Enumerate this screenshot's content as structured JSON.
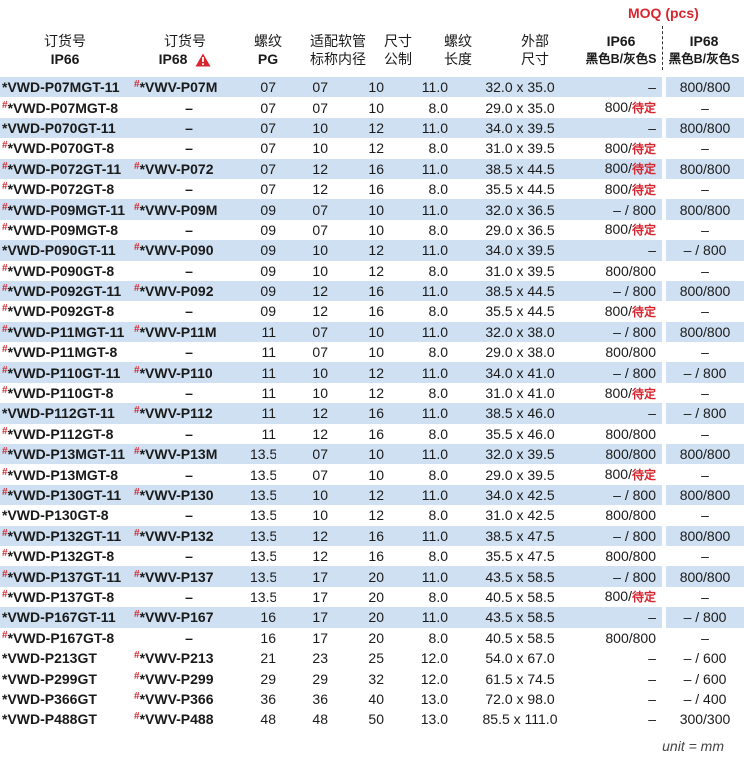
{
  "header": {
    "moq_title": "MOQ (pcs)",
    "col1_top": "订货号",
    "col1_bottom": "IP66",
    "col2_top": "订货号",
    "col2_bottom": "IP68",
    "col3_top": "螺纹",
    "col3_bottom": "PG",
    "col4_top": "适配软管",
    "col4_bottom": "标称内径",
    "col5_top": "尺寸",
    "col5_bottom": "公制",
    "col6_top": "螺纹",
    "col6_bottom": "长度",
    "col7_top": "外部",
    "col7_bottom": "尺寸",
    "col8_top": "IP66",
    "col8_bottom": "黑色B/灰色S",
    "col9_top": "IP68",
    "col9_bottom": "黑色B/灰色S"
  },
  "warning_icon": "warning-triangle-icon",
  "tbd_label": "待定",
  "rows": [
    {
      "ip66": "*VWD-P07MGT-11",
      "ip66_mark": "",
      "ip68": "*VWV-P07M",
      "ip68_mark": "#",
      "pg": "07",
      "hose": "07",
      "metric": "10",
      "len": "11.0",
      "ext": "32.0 x 35.0",
      "moq66_a": "–",
      "moq66_b": "",
      "moq68": "800/800"
    },
    {
      "ip66": "*VWD-P07MGT-8",
      "ip66_mark": "#",
      "ip68": "–",
      "ip68_mark": "",
      "pg": "07",
      "hose": "07",
      "metric": "10",
      "len": "8.0",
      "ext": "29.0 x 35.0",
      "moq66_a": "800/",
      "moq66_b": "待定",
      "moq68": "–"
    },
    {
      "ip66": "*VWD-P070GT-11",
      "ip66_mark": "",
      "ip68": "–",
      "ip68_mark": "",
      "pg": "07",
      "hose": "10",
      "metric": "12",
      "len": "11.0",
      "ext": "34.0 x 39.5",
      "moq66_a": "–",
      "moq66_b": "",
      "moq68": "800/800"
    },
    {
      "ip66": "*VWD-P070GT-8",
      "ip66_mark": "#",
      "ip68": "–",
      "ip68_mark": "",
      "pg": "07",
      "hose": "10",
      "metric": "12",
      "len": "8.0",
      "ext": "31.0 x 39.5",
      "moq66_a": "800/",
      "moq66_b": "待定",
      "moq68": "–"
    },
    {
      "ip66": "*VWD-P072GT-11",
      "ip66_mark": "#",
      "ip68": "*VWV-P072",
      "ip68_mark": "#",
      "pg": "07",
      "hose": "12",
      "metric": "16",
      "len": "11.0",
      "ext": "38.5 x 44.5",
      "moq66_a": "800/",
      "moq66_b": "待定",
      "moq68": "800/800"
    },
    {
      "ip66": "*VWD-P072GT-8",
      "ip66_mark": "#",
      "ip68": "–",
      "ip68_mark": "",
      "pg": "07",
      "hose": "12",
      "metric": "16",
      "len": "8.0",
      "ext": "35.5 x 44.5",
      "moq66_a": "800/",
      "moq66_b": "待定",
      "moq68": "–"
    },
    {
      "ip66": "*VWD-P09MGT-11",
      "ip66_mark": "#",
      "ip68": "*VWV-P09M",
      "ip68_mark": "#",
      "pg": "09",
      "hose": "07",
      "metric": "10",
      "len": "11.0",
      "ext": "32.0 x 36.5",
      "moq66_a": "– / 800",
      "moq66_b": "",
      "moq68": "800/800"
    },
    {
      "ip66": "*VWD-P09MGT-8",
      "ip66_mark": "#",
      "ip68": "–",
      "ip68_mark": "",
      "pg": "09",
      "hose": "07",
      "metric": "10",
      "len": "8.0",
      "ext": "29.0 x 36.5",
      "moq66_a": "800/",
      "moq66_b": "待定",
      "moq68": "–"
    },
    {
      "ip66": "*VWD-P090GT-11",
      "ip66_mark": "",
      "ip68": "*VWV-P090",
      "ip68_mark": "#",
      "pg": "09",
      "hose": "10",
      "metric": "12",
      "len": "11.0",
      "ext": "34.0 x 39.5",
      "moq66_a": "–",
      "moq66_b": "",
      "moq68": "– / 800"
    },
    {
      "ip66": "*VWD-P090GT-8",
      "ip66_mark": "#",
      "ip68": "–",
      "ip68_mark": "",
      "pg": "09",
      "hose": "10",
      "metric": "12",
      "len": "8.0",
      "ext": "31.0 x 39.5",
      "moq66_a": "800/800",
      "moq66_b": "",
      "moq68": "–"
    },
    {
      "ip66": "*VWD-P092GT-11",
      "ip66_mark": "#",
      "ip68": "*VWV-P092",
      "ip68_mark": "#",
      "pg": "09",
      "hose": "12",
      "metric": "16",
      "len": "11.0",
      "ext": "38.5 x 44.5",
      "moq66_a": "– / 800",
      "moq66_b": "",
      "moq68": "800/800"
    },
    {
      "ip66": "*VWD-P092GT-8",
      "ip66_mark": "#",
      "ip68": "–",
      "ip68_mark": "",
      "pg": "09",
      "hose": "12",
      "metric": "16",
      "len": "8.0",
      "ext": "35.5 x 44.5",
      "moq66_a": "800/",
      "moq66_b": "待定",
      "moq68": "–"
    },
    {
      "ip66": "*VWD-P11MGT-11",
      "ip66_mark": "#",
      "ip68": "*VWV-P11M",
      "ip68_mark": "#",
      "pg": "11",
      "hose": "07",
      "metric": "10",
      "len": "11.0",
      "ext": "32.0 x 38.0",
      "moq66_a": "– / 800",
      "moq66_b": "",
      "moq68": "800/800"
    },
    {
      "ip66": "*VWD-P11MGT-8",
      "ip66_mark": "#",
      "ip68": "–",
      "ip68_mark": "",
      "pg": "11",
      "hose": "07",
      "metric": "10",
      "len": "8.0",
      "ext": "29.0 x 38.0",
      "moq66_a": "800/800",
      "moq66_b": "",
      "moq68": "–"
    },
    {
      "ip66": "*VWD-P110GT-11",
      "ip66_mark": "#",
      "ip68": "*VWV-P110",
      "ip68_mark": "#",
      "pg": "11",
      "hose": "10",
      "metric": "12",
      "len": "11.0",
      "ext": "34.0 x 41.0",
      "moq66_a": "– / 800",
      "moq66_b": "",
      "moq68": "– / 800"
    },
    {
      "ip66": "*VWD-P110GT-8",
      "ip66_mark": "#",
      "ip68": "–",
      "ip68_mark": "",
      "pg": "11",
      "hose": "10",
      "metric": "12",
      "len": "8.0",
      "ext": "31.0 x 41.0",
      "moq66_a": "800/",
      "moq66_b": "待定",
      "moq68": "–"
    },
    {
      "ip66": "*VWD-P112GT-11",
      "ip66_mark": "",
      "ip68": "*VWV-P112",
      "ip68_mark": "#",
      "pg": "11",
      "hose": "12",
      "metric": "16",
      "len": "11.0",
      "ext": "38.5 x 46.0",
      "moq66_a": "–",
      "moq66_b": "",
      "moq68": "– / 800"
    },
    {
      "ip66": "*VWD-P112GT-8",
      "ip66_mark": "#",
      "ip68": "–",
      "ip68_mark": "",
      "pg": "11",
      "hose": "12",
      "metric": "16",
      "len": "8.0",
      "ext": "35.5 x 46.0",
      "moq66_a": "800/800",
      "moq66_b": "",
      "moq68": "–"
    },
    {
      "ip66": "*VWD-P13MGT-11",
      "ip66_mark": "#",
      "ip68": "*VWV-P13M",
      "ip68_mark": "#",
      "pg": "13.5",
      "hose": "07",
      "metric": "10",
      "len": "11.0",
      "ext": "32.0 x 39.5",
      "moq66_a": "800/800",
      "moq66_b": "",
      "moq68": "800/800"
    },
    {
      "ip66": "*VWD-P13MGT-8",
      "ip66_mark": "#",
      "ip68": "–",
      "ip68_mark": "",
      "pg": "13.5",
      "hose": "07",
      "metric": "10",
      "len": "8.0",
      "ext": "29.0 x 39.5",
      "moq66_a": "800/",
      "moq66_b": "待定",
      "moq68": "–"
    },
    {
      "ip66": "*VWD-P130GT-11",
      "ip66_mark": "#",
      "ip68": "*VWV-P130",
      "ip68_mark": "#",
      "pg": "13.5",
      "hose": "10",
      "metric": "12",
      "len": "11.0",
      "ext": "34.0 x 42.5",
      "moq66_a": "– / 800",
      "moq66_b": "",
      "moq68": "800/800"
    },
    {
      "ip66": "*VWD-P130GT-8",
      "ip66_mark": "",
      "ip68": "–",
      "ip68_mark": "",
      "pg": "13.5",
      "hose": "10",
      "metric": "12",
      "len": "8.0",
      "ext": "31.0 x 42.5",
      "moq66_a": "800/800",
      "moq66_b": "",
      "moq68": "–"
    },
    {
      "ip66": "*VWD-P132GT-11",
      "ip66_mark": "#",
      "ip68": "*VWV-P132",
      "ip68_mark": "#",
      "pg": "13.5",
      "hose": "12",
      "metric": "16",
      "len": "11.0",
      "ext": "38.5 x 47.5",
      "moq66_a": "– / 800",
      "moq66_b": "",
      "moq68": "800/800"
    },
    {
      "ip66": "*VWD-P132GT-8",
      "ip66_mark": "#",
      "ip68": "–",
      "ip68_mark": "",
      "pg": "13.5",
      "hose": "12",
      "metric": "16",
      "len": "8.0",
      "ext": "35.5 x 47.5",
      "moq66_a": "800/800",
      "moq66_b": "",
      "moq68": "–"
    },
    {
      "ip66": "*VWD-P137GT-11",
      "ip66_mark": "#",
      "ip68": "*VWV-P137",
      "ip68_mark": "#",
      "pg": "13.5",
      "hose": "17",
      "metric": "20",
      "len": "11.0",
      "ext": "43.5 x 58.5",
      "moq66_a": "– / 800",
      "moq66_b": "",
      "moq68": "800/800"
    },
    {
      "ip66": "*VWD-P137GT-8",
      "ip66_mark": "#",
      "ip68": "–",
      "ip68_mark": "",
      "pg": "13.5",
      "hose": "17",
      "metric": "20",
      "len": "8.0",
      "ext": "40.5 x 58.5",
      "moq66_a": "800/",
      "moq66_b": "待定",
      "moq68": "–"
    },
    {
      "ip66": "*VWD-P167GT-11",
      "ip66_mark": "",
      "ip68": "*VWV-P167",
      "ip68_mark": "#",
      "pg": "16",
      "hose": "17",
      "metric": "20",
      "len": "11.0",
      "ext": "43.5 x 58.5",
      "moq66_a": "–",
      "moq66_b": "",
      "moq68": "– / 800"
    },
    {
      "ip66": "*VWD-P167GT-8",
      "ip66_mark": "#",
      "ip68": "–",
      "ip68_mark": "",
      "pg": "16",
      "hose": "17",
      "metric": "20",
      "len": "8.0",
      "ext": "40.5 x 58.5",
      "moq66_a": "800/800",
      "moq66_b": "",
      "moq68": "–"
    },
    {
      "ip66": "*VWD-P213GT",
      "ip66_mark": "",
      "ip68": "*VWV-P213",
      "ip68_mark": "#",
      "pg": "21",
      "hose": "23",
      "metric": "25",
      "len": "12.0",
      "ext": "54.0 x 67.0",
      "moq66_a": "–",
      "moq66_b": "",
      "moq68": "– / 600"
    },
    {
      "ip66": "*VWD-P299GT",
      "ip66_mark": "",
      "ip68": "*VWV-P299",
      "ip68_mark": "#",
      "pg": "29",
      "hose": "29",
      "metric": "32",
      "len": "12.0",
      "ext": "61.5 x 74.5",
      "moq66_a": "–",
      "moq66_b": "",
      "moq68": "– / 600"
    },
    {
      "ip66": "*VWD-P366GT",
      "ip66_mark": "",
      "ip68": "*VWV-P366",
      "ip68_mark": "#",
      "pg": "36",
      "hose": "36",
      "metric": "40",
      "len": "13.0",
      "ext": "72.0 x 98.0",
      "moq66_a": "–",
      "moq66_b": "",
      "moq68": "– / 400"
    },
    {
      "ip66": "*VWD-P488GT",
      "ip66_mark": "",
      "ip68": "*VWV-P488",
      "ip68_mark": "#",
      "pg": "48",
      "hose": "48",
      "metric": "50",
      "len": "13.0",
      "ext": "85.5 x 111.0",
      "moq66_a": "–",
      "moq66_b": "",
      "moq68": "300/300"
    }
  ],
  "footer": {
    "unit": "unit = mm"
  }
}
